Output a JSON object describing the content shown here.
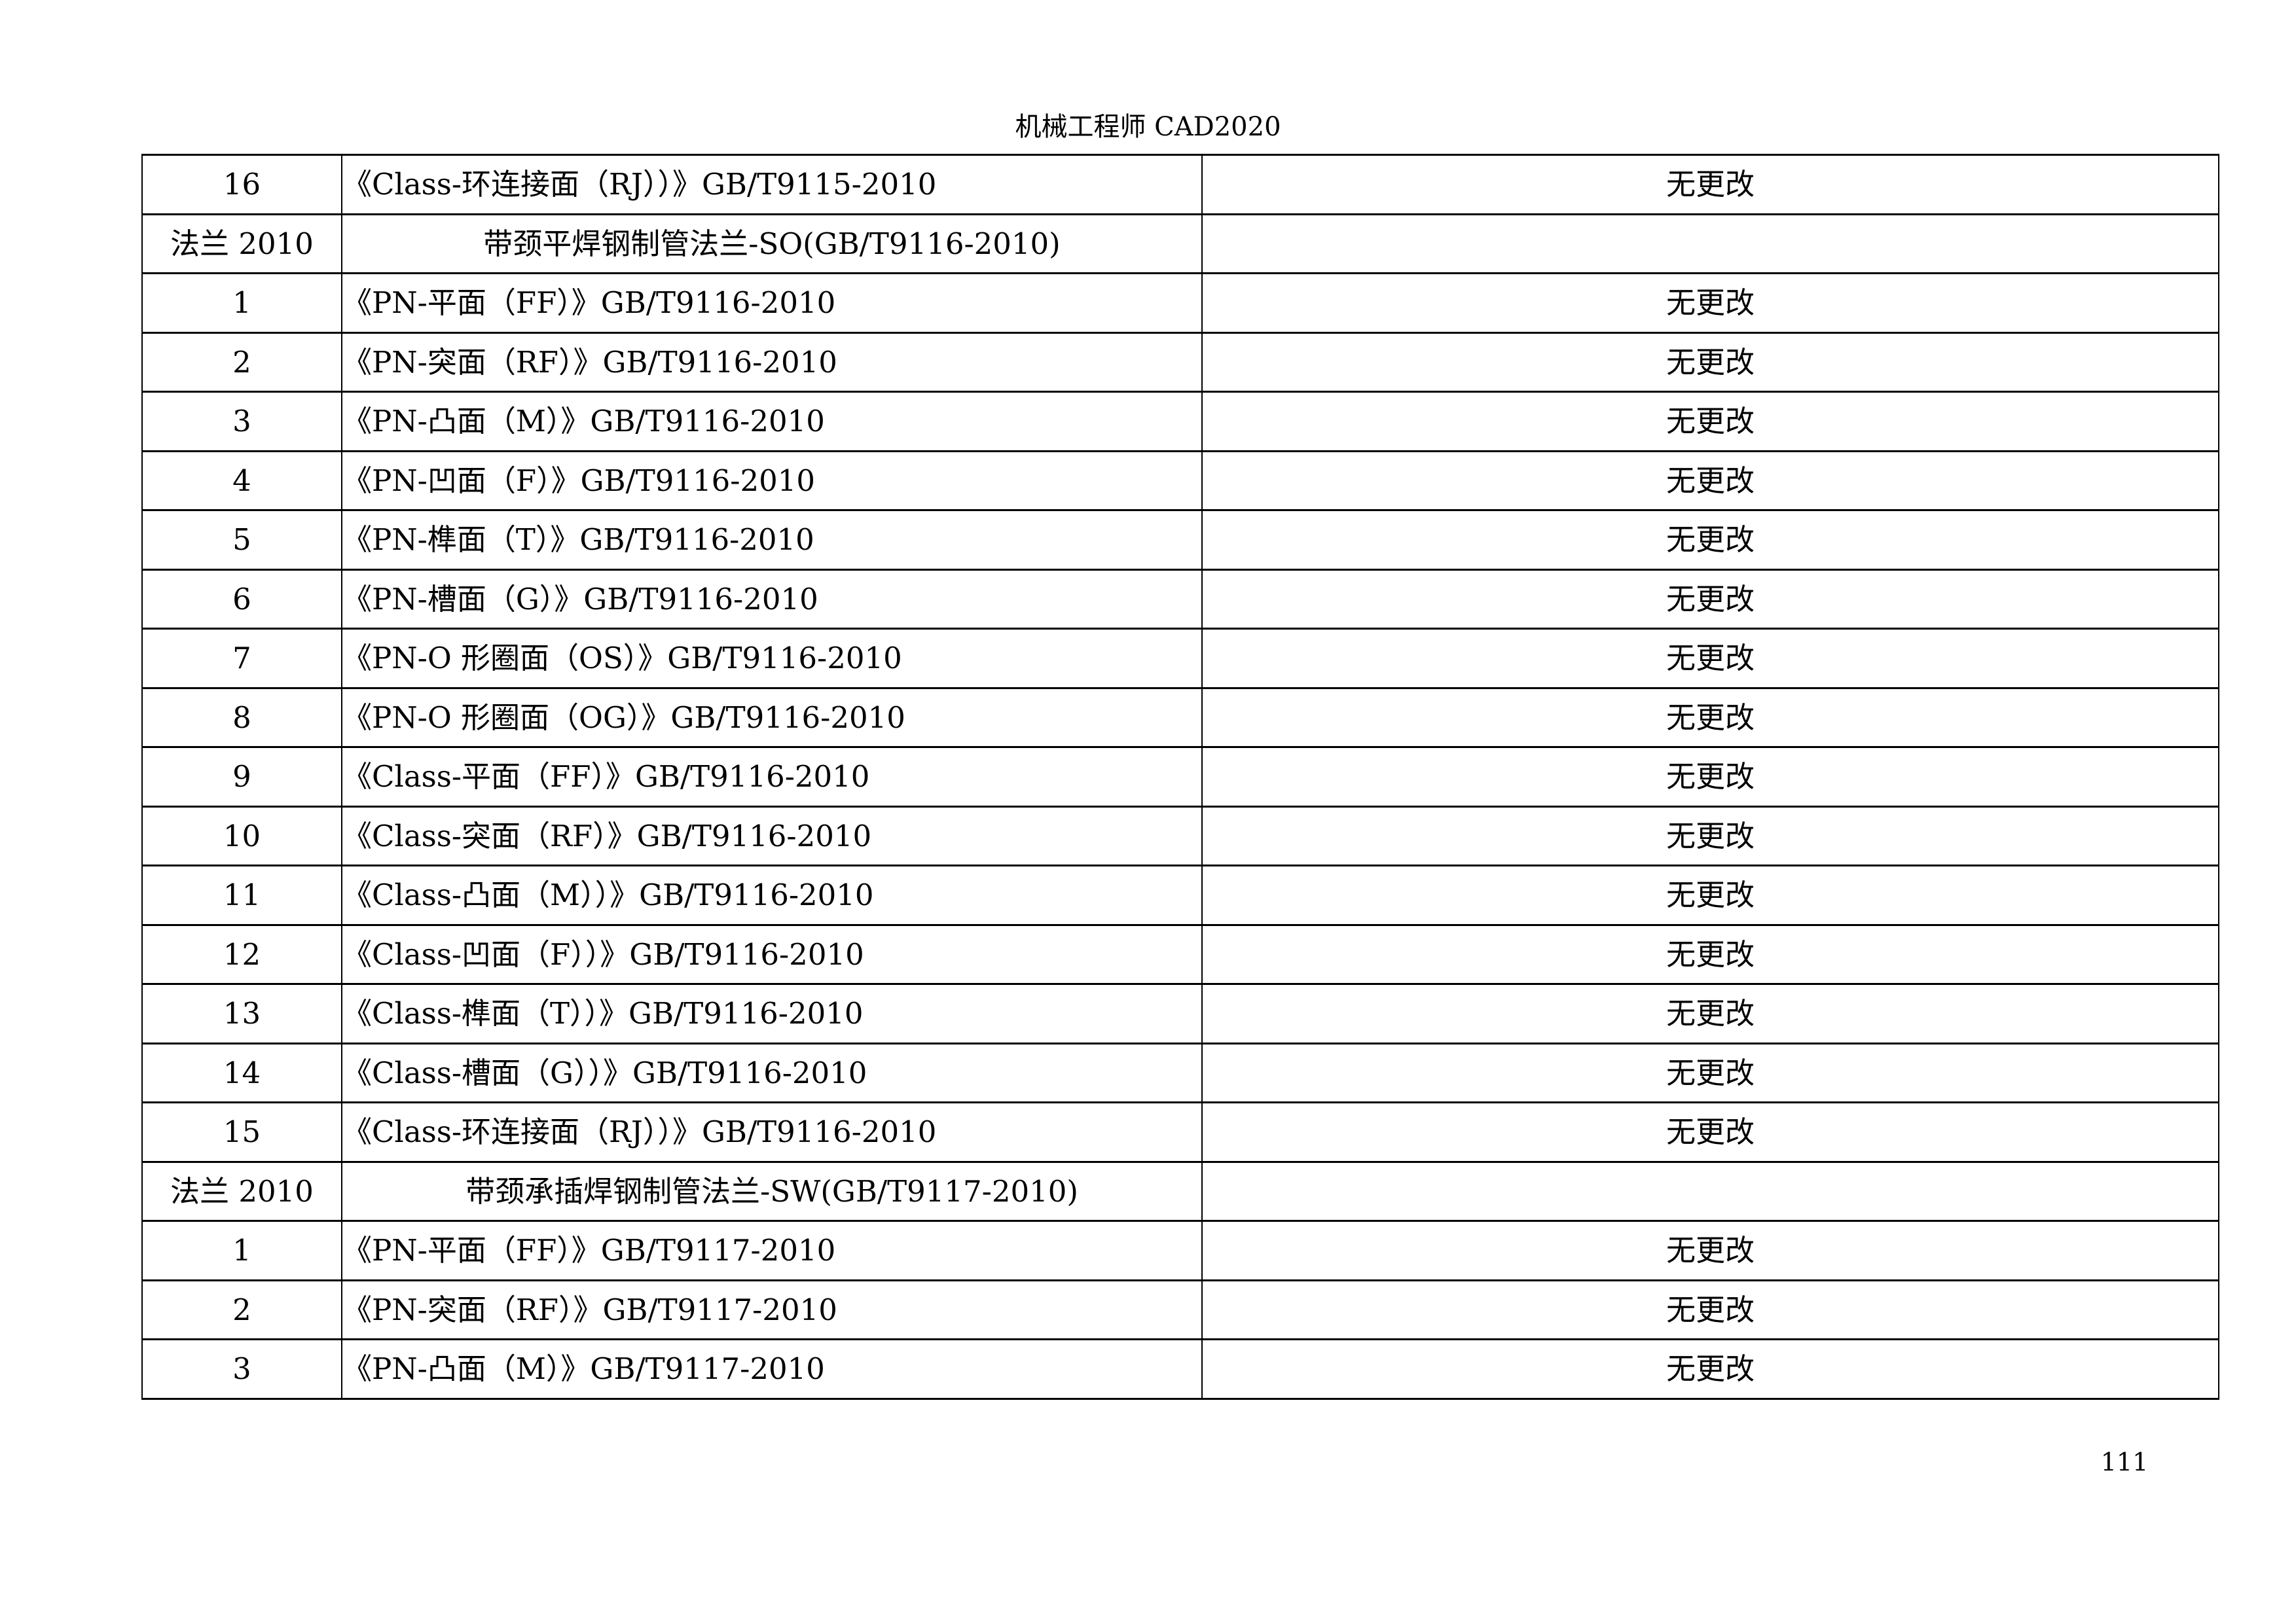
{
  "page": {
    "header_title": "机械工程师 CAD2020",
    "page_number": "111"
  },
  "table": {
    "rows": [
      {
        "type": "item",
        "index": "16",
        "title": "《Class-环连接面（RJ））》GB/T9115-2010",
        "status": "无更改"
      },
      {
        "type": "section",
        "index": "法兰 2010",
        "title": "带颈平焊钢制管法兰-SO(GB/T9116-2010)",
        "status": ""
      },
      {
        "type": "item",
        "index": "1",
        "title": "《PN-平面（FF）》GB/T9116-2010",
        "status": "无更改"
      },
      {
        "type": "item",
        "index": "2",
        "title": "《PN-突面（RF）》GB/T9116-2010",
        "status": "无更改"
      },
      {
        "type": "item",
        "index": "3",
        "title": "《PN-凸面（M）》GB/T9116-2010",
        "status": "无更改"
      },
      {
        "type": "item",
        "index": "4",
        "title": "《PN-凹面（F）》GB/T9116-2010",
        "status": "无更改"
      },
      {
        "type": "item",
        "index": "5",
        "title": "《PN-榫面（T）》GB/T9116-2010",
        "status": "无更改"
      },
      {
        "type": "item",
        "index": "6",
        "title": "《PN-槽面（G）》GB/T9116-2010",
        "status": "无更改"
      },
      {
        "type": "item",
        "index": "7",
        "title": "《PN-O 形圈面（OS）》GB/T9116-2010",
        "status": "无更改"
      },
      {
        "type": "item",
        "index": "8",
        "title": "《PN-O 形圈面（OG）》GB/T9116-2010",
        "status": "无更改"
      },
      {
        "type": "item",
        "index": "9",
        "title": "《Class-平面（FF）》GB/T9116-2010",
        "status": "无更改"
      },
      {
        "type": "item",
        "index": "10",
        "title": "《Class-突面（RF）》GB/T9116-2010",
        "status": "无更改"
      },
      {
        "type": "item",
        "index": "11",
        "title": "《Class-凸面（M））》GB/T9116-2010",
        "status": "无更改"
      },
      {
        "type": "item",
        "index": "12",
        "title": "《Class-凹面（F））》GB/T9116-2010",
        "status": "无更改"
      },
      {
        "type": "item",
        "index": "13",
        "title": "《Class-榫面（T））》GB/T9116-2010",
        "status": "无更改"
      },
      {
        "type": "item",
        "index": "14",
        "title": "《Class-槽面（G））》GB/T9116-2010",
        "status": "无更改"
      },
      {
        "type": "item",
        "index": "15",
        "title": "《Class-环连接面（RJ））》GB/T9116-2010",
        "status": "无更改"
      },
      {
        "type": "section",
        "index": "法兰 2010",
        "title": "带颈承插焊钢制管法兰-SW(GB/T9117-2010)",
        "status": ""
      },
      {
        "type": "item",
        "index": "1",
        "title": "《PN-平面（FF）》GB/T9117-2010",
        "status": "无更改"
      },
      {
        "type": "item",
        "index": "2",
        "title": "《PN-突面（RF）》GB/T9117-2010",
        "status": "无更改"
      },
      {
        "type": "item",
        "index": "3",
        "title": "《PN-凸面（M）》GB/T9117-2010",
        "status": "无更改"
      }
    ]
  }
}
